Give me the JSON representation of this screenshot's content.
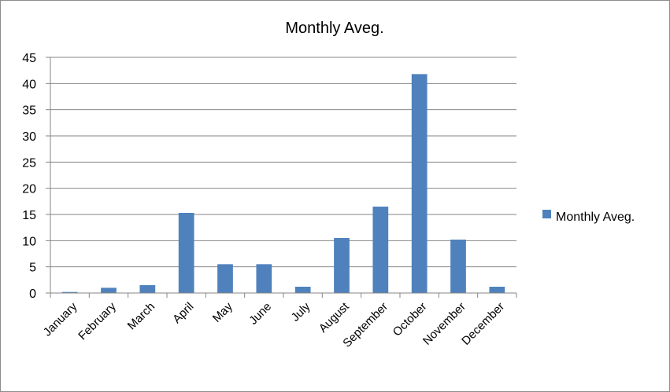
{
  "chart_data": {
    "type": "bar",
    "title": "Monthly Aveg.",
    "xlabel": "",
    "ylabel": "",
    "categories": [
      "January",
      "February",
      "March",
      "April",
      "May",
      "June",
      "July",
      "August",
      "September",
      "October",
      "November",
      "December"
    ],
    "series": [
      {
        "name": "Monthly Aveg.",
        "color": "#4f81bd",
        "values": [
          0.2,
          1.0,
          1.5,
          15.3,
          5.5,
          5.5,
          1.2,
          10.5,
          16.5,
          41.8,
          10.2,
          1.2
        ]
      }
    ],
    "ylim": [
      0,
      45
    ],
    "yticks": [
      0,
      5,
      10,
      15,
      20,
      25,
      30,
      35,
      40,
      45
    ],
    "grid": true,
    "legend_position": "right"
  }
}
